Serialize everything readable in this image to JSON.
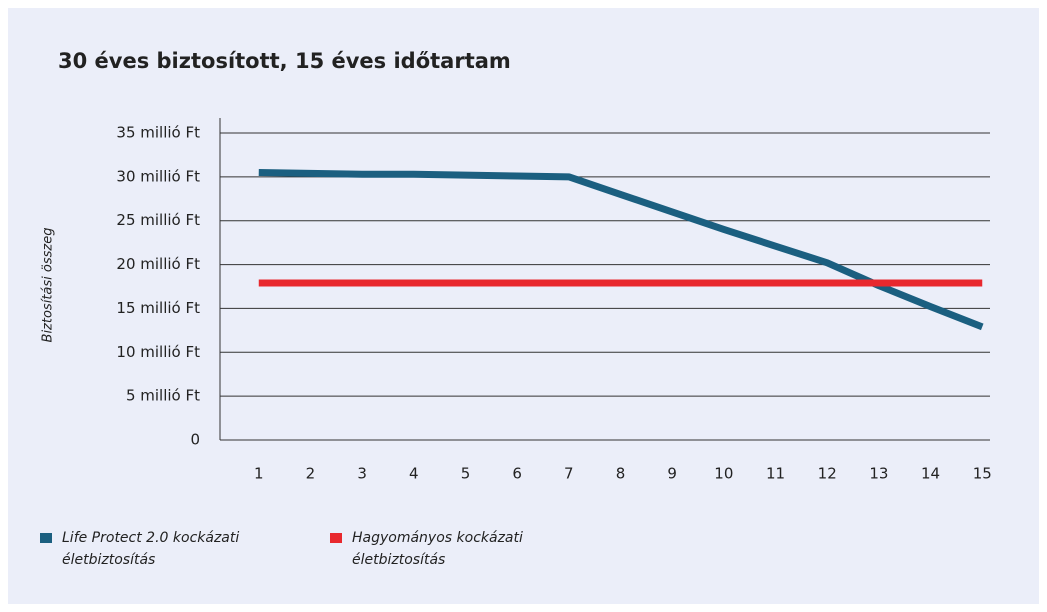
{
  "chart_data": {
    "type": "line",
    "title": "30 éves biztosított, 15 éves időtartam",
    "y_label": "Biztosítási összeg",
    "x": [
      1,
      2,
      3,
      4,
      5,
      6,
      7,
      8,
      9,
      10,
      11,
      12,
      13,
      14,
      15
    ],
    "xlim": [
      0.25,
      15.15
    ],
    "xticks": [
      1,
      2,
      3,
      4,
      5,
      6,
      7,
      8,
      9,
      10,
      11,
      12,
      13,
      14,
      {
        "value": 15,
        "label": "15"
      }
    ],
    "ylim": [
      0,
      35
    ],
    "yticks": [
      0,
      {
        "value": 5,
        "label": "5 millió Ft"
      },
      {
        "value": 10,
        "label": "10 millió Ft"
      },
      {
        "value": 15,
        "label": "15 millió Ft"
      },
      {
        "value": 20,
        "label": "20 millió Ft"
      },
      {
        "value": 25,
        "label": "25 millió Ft"
      },
      {
        "value": 30,
        "label": "30 millió Ft"
      },
      {
        "value": 35,
        "label": "35 millió Ft"
      }
    ],
    "grid": true,
    "legend": "bottom-left",
    "series": [
      {
        "name": "Life Protect 2.0 kockázati életbiztosítás",
        "color": "#1b5f80",
        "values": [
          30.5,
          30.4,
          30.3,
          30.3,
          30.2,
          30.1,
          30,
          28,
          26,
          24,
          22.1,
          20.2,
          17.6,
          15.2,
          12.9
        ]
      },
      {
        "name": "Hagyományos kockázati életbiztosítás",
        "color": "#e8282e",
        "values": [
          17.9,
          17.9,
          17.9,
          17.9,
          17.9,
          17.9,
          17.9,
          17.9,
          17.9,
          17.9,
          17.9,
          17.9,
          17.9,
          17.9,
          17.9
        ]
      }
    ]
  }
}
